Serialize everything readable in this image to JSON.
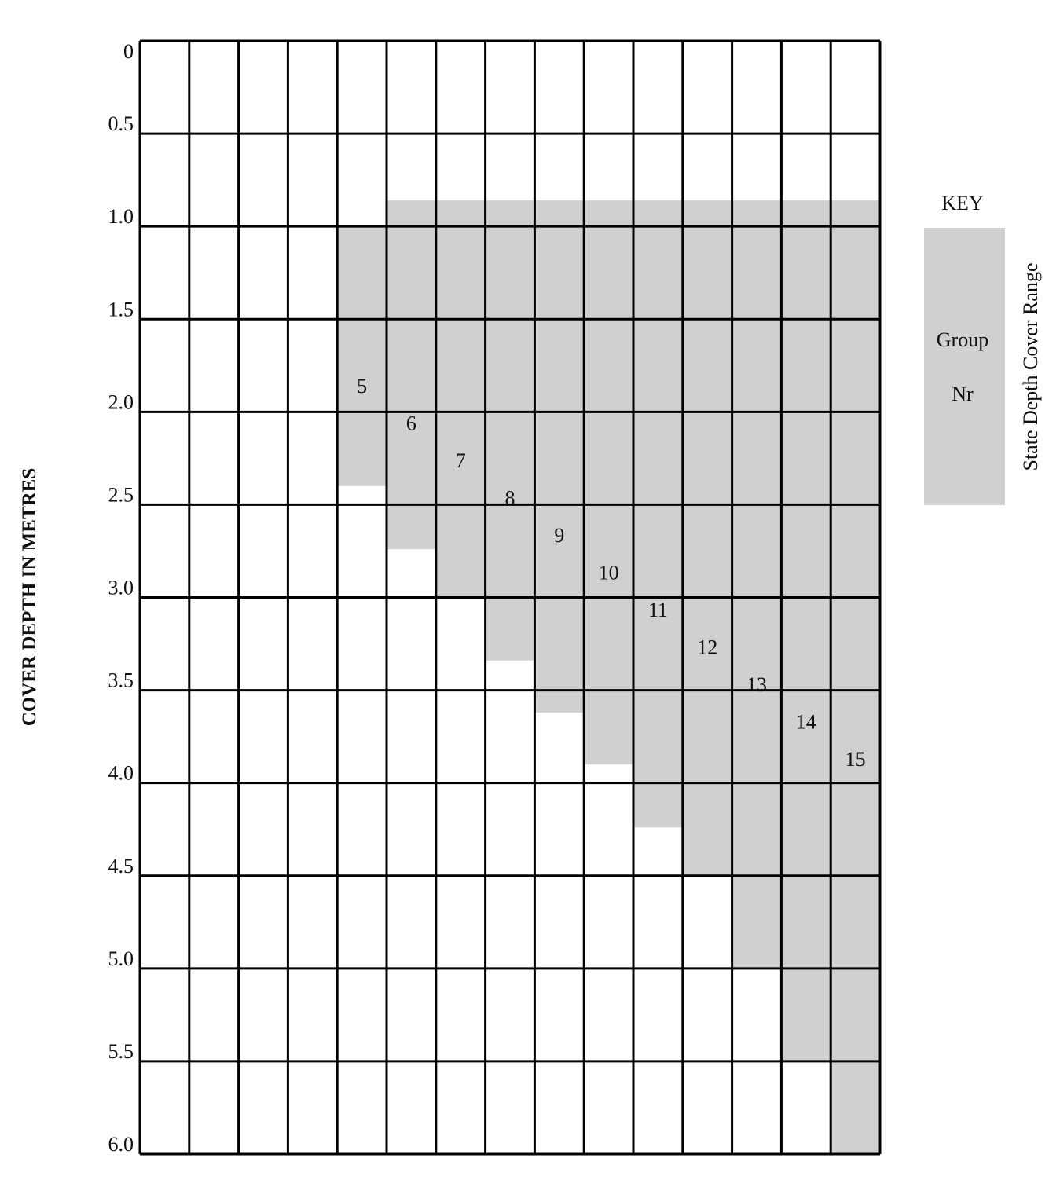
{
  "chart_data": {
    "type": "range-bar",
    "y_label": "COVER DEPTH IN METRES",
    "categories": [
      null,
      null,
      null,
      null,
      "5",
      "6",
      "7",
      "8",
      "9",
      "10",
      "11",
      "12",
      "13",
      "14",
      "15"
    ],
    "values": [
      null,
      null,
      null,
      null,
      [
        1.0,
        2.4
      ],
      [
        0.86,
        2.74
      ],
      [
        0.86,
        3.0
      ],
      [
        0.86,
        3.34
      ],
      [
        0.86,
        3.62
      ],
      [
        0.86,
        3.9
      ],
      [
        0.86,
        4.24
      ],
      [
        0.86,
        4.5
      ],
      [
        0.86,
        5.0
      ],
      [
        0.86,
        5.5
      ],
      [
        0.86,
        6.0
      ]
    ],
    "color": "#d0d0d0",
    "ylim": [
      0,
      6.0
    ],
    "yticks": [
      0,
      0.5,
      {
        "value": 1.0,
        "label": "1.0"
      },
      1.5,
      {
        "value": 2.0,
        "label": "2.0"
      },
      2.5,
      {
        "value": 3.0,
        "label": "3.0"
      },
      3.5,
      {
        "value": 4.0,
        "label": "4.0"
      },
      4.5,
      {
        "value": 5.0,
        "label": "5.0"
      },
      5.5,
      {
        "value": 6.0,
        "label": "6.0"
      }
    ],
    "inverted_y": true,
    "grid": true,
    "key": {
      "title": "KEY",
      "line1": "Group",
      "line2": "Nr",
      "side_label": "State Depth Cover Range"
    }
  }
}
